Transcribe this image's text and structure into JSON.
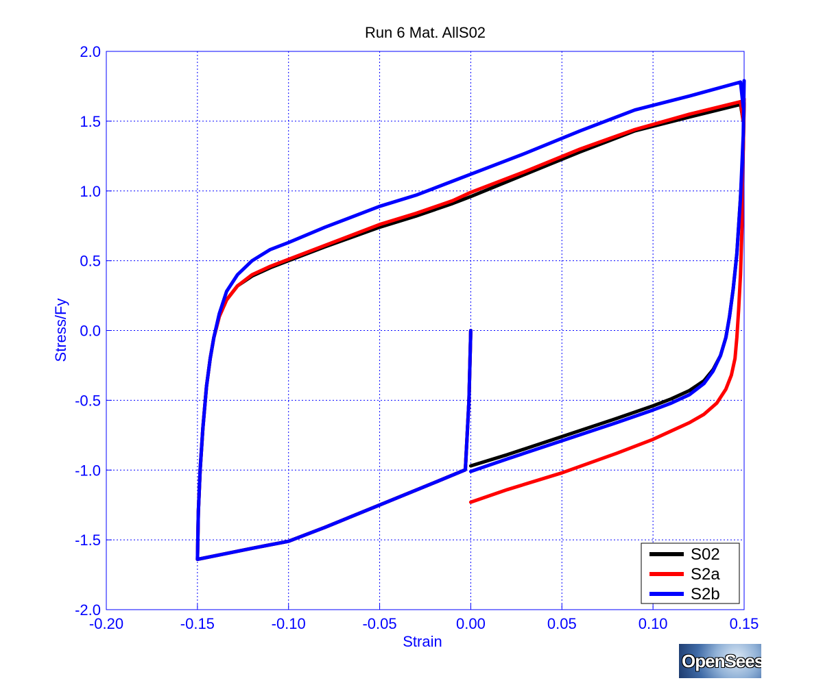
{
  "chart_data": {
    "type": "line",
    "title": "Run 6    Mat. AllS02",
    "xlabel": "Strain",
    "ylabel": "Stress/Fy",
    "xlim": [
      -0.2,
      0.15
    ],
    "ylim": [
      -2.0,
      2.0
    ],
    "xticks": [
      -0.2,
      -0.15,
      -0.1,
      -0.05,
      0.0,
      0.05,
      0.1,
      0.15
    ],
    "xtick_labels": [
      "-0.20",
      "-0.15",
      "-0.10",
      "-0.05",
      "0.00",
      "0.05",
      "0.10",
      "0.15"
    ],
    "yticks": [
      -2.0,
      -1.5,
      -1.0,
      -0.5,
      0.0,
      0.5,
      1.0,
      1.5,
      2.0
    ],
    "ytick_labels": [
      "-2.0",
      "-1.5",
      "-1.0",
      "-0.5",
      "0.0",
      "0.5",
      "1.0",
      "1.5",
      "2.0"
    ],
    "grid": true,
    "legend_position": "bottom-right",
    "series": [
      {
        "name": "S02",
        "color": "#000000",
        "x": [
          0.0,
          -0.001,
          -0.003,
          -0.02,
          -0.05,
          -0.08,
          -0.1,
          -0.12,
          -0.15,
          -0.1495,
          -0.1485,
          -0.147,
          -0.145,
          -0.143,
          -0.141,
          -0.138,
          -0.134,
          -0.128,
          -0.12,
          -0.11,
          -0.1,
          -0.08,
          -0.05,
          -0.03,
          -0.01,
          0.0,
          0.03,
          0.06,
          0.09,
          0.12,
          0.148,
          0.1495,
          0.15,
          0.1495,
          0.148,
          0.146,
          0.144,
          0.142,
          0.14,
          0.137,
          0.133,
          0.128,
          0.12,
          0.11,
          0.1,
          0.08,
          0.05,
          0.02,
          0.0
        ],
        "y": [
          0.0,
          -0.5,
          -0.998,
          -1.09,
          -1.25,
          -1.41,
          -1.51,
          -1.56,
          -1.64,
          -1.3,
          -1.0,
          -0.7,
          -0.4,
          -0.2,
          -0.05,
          0.1,
          0.22,
          0.32,
          0.39,
          0.45,
          0.5,
          0.6,
          0.74,
          0.82,
          0.91,
          0.96,
          1.12,
          1.28,
          1.43,
          1.53,
          1.62,
          1.5,
          1.63,
          1.3,
          0.95,
          0.55,
          0.3,
          0.1,
          -0.05,
          -0.18,
          -0.28,
          -0.36,
          -0.43,
          -0.49,
          -0.54,
          -0.63,
          -0.76,
          -0.89,
          -0.97
        ]
      },
      {
        "name": "S2a",
        "color": "#ff0000",
        "x": [
          0.0,
          -0.001,
          -0.003,
          -0.02,
          -0.05,
          -0.08,
          -0.1,
          -0.12,
          -0.15,
          -0.1495,
          -0.1485,
          -0.147,
          -0.145,
          -0.143,
          -0.141,
          -0.138,
          -0.134,
          -0.128,
          -0.12,
          -0.11,
          -0.1,
          -0.08,
          -0.05,
          -0.03,
          -0.01,
          0.0,
          0.03,
          0.06,
          0.09,
          0.12,
          0.148,
          0.1495,
          0.15,
          0.1495,
          0.149,
          0.148,
          0.147,
          0.146,
          0.145,
          0.143,
          0.14,
          0.135,
          0.128,
          0.12,
          0.11,
          0.1,
          0.08,
          0.05,
          0.02,
          0.0
        ],
        "y": [
          0.0,
          -0.5,
          -0.998,
          -1.09,
          -1.25,
          -1.41,
          -1.51,
          -1.56,
          -1.64,
          -1.3,
          -1.0,
          -0.7,
          -0.4,
          -0.2,
          -0.05,
          0.1,
          0.22,
          0.32,
          0.4,
          0.46,
          0.51,
          0.61,
          0.76,
          0.84,
          0.93,
          0.99,
          1.14,
          1.3,
          1.44,
          1.55,
          1.64,
          1.5,
          1.66,
          1.3,
          0.8,
          0.4,
          0.15,
          -0.05,
          -0.2,
          -0.32,
          -0.42,
          -0.52,
          -0.6,
          -0.66,
          -0.72,
          -0.78,
          -0.88,
          -1.02,
          -1.14,
          -1.23
        ]
      },
      {
        "name": "S2b",
        "color": "#0000ff",
        "x": [
          0.0,
          -0.001,
          -0.003,
          -0.02,
          -0.05,
          -0.08,
          -0.1,
          -0.12,
          -0.15,
          -0.1495,
          -0.1485,
          -0.147,
          -0.145,
          -0.143,
          -0.141,
          -0.138,
          -0.134,
          -0.128,
          -0.12,
          -0.11,
          -0.1,
          -0.08,
          -0.05,
          -0.03,
          -0.01,
          0.0,
          0.03,
          0.06,
          0.09,
          0.12,
          0.148,
          0.1495,
          0.15,
          0.1495,
          0.148,
          0.146,
          0.144,
          0.142,
          0.14,
          0.137,
          0.133,
          0.128,
          0.12,
          0.11,
          0.1,
          0.08,
          0.05,
          0.02,
          0.0
        ],
        "y": [
          0.0,
          -0.5,
          -0.998,
          -1.09,
          -1.25,
          -1.41,
          -1.51,
          -1.56,
          -1.64,
          -1.3,
          -1.0,
          -0.7,
          -0.4,
          -0.2,
          -0.05,
          0.12,
          0.28,
          0.4,
          0.5,
          0.58,
          0.63,
          0.74,
          0.89,
          0.97,
          1.07,
          1.12,
          1.27,
          1.43,
          1.58,
          1.68,
          1.78,
          1.6,
          1.79,
          1.4,
          0.95,
          0.55,
          0.3,
          0.1,
          -0.05,
          -0.18,
          -0.29,
          -0.38,
          -0.46,
          -0.52,
          -0.57,
          -0.66,
          -0.79,
          -0.92,
          -1.01
        ]
      }
    ]
  },
  "logo_text": "OpenSees"
}
